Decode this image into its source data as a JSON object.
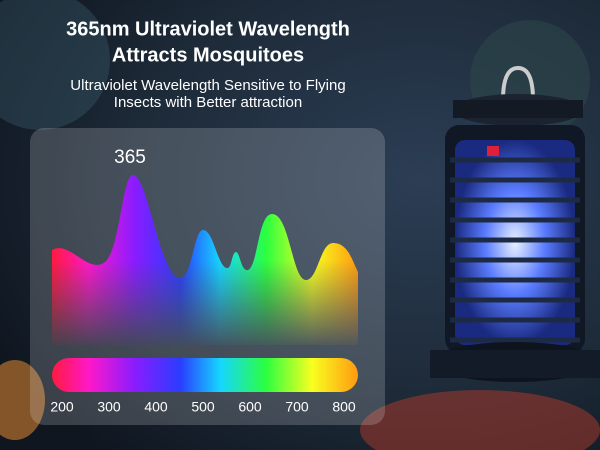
{
  "headline": [
    "365nm Ultraviolet Wavelength",
    "Attracts Mosquitoes"
  ],
  "subheadline": [
    "Ultraviolet Wavelength Sensitive to Flying",
    "Insects with Better attraction"
  ],
  "spectrum": {
    "peak_label": "365",
    "axis_labels": [
      200,
      300,
      400,
      500,
      600,
      700,
      800
    ]
  }
}
